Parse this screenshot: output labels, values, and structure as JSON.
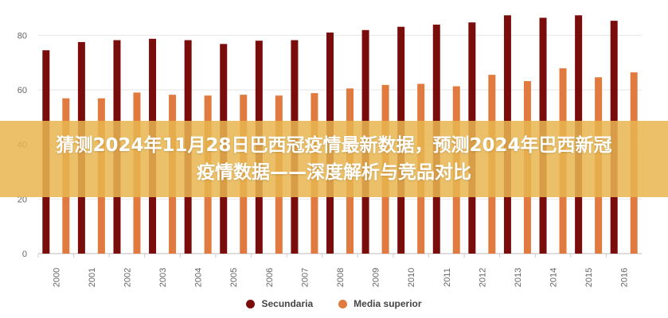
{
  "overlay": {
    "title": "猜测2024年11月28日巴西冠疫情最新数据，预测2024年巴西新冠疫情数据——深度解析与竞品对比"
  },
  "chart_data": {
    "type": "bar",
    "categories": [
      "2000",
      "2001",
      "2002",
      "2003",
      "2004",
      "2005",
      "2006",
      "2007",
      "2008",
      "2009",
      "2010",
      "2011",
      "2012",
      "2013",
      "2014",
      "2015",
      "2016"
    ],
    "series": [
      {
        "name": "Secundaria",
        "color": "#7a0c0c",
        "values": [
          74.5,
          77.5,
          78.2,
          78.7,
          78.2,
          76.8,
          78.0,
          78.2,
          81.0,
          81.9,
          83.1,
          83.9,
          84.7,
          87.3,
          86.4,
          87.3,
          85.3
        ]
      },
      {
        "name": "Media superior",
        "color": "#e07a3e",
        "values": [
          56.9,
          56.9,
          59.0,
          58.2,
          57.9,
          58.2,
          57.9,
          58.8,
          60.5,
          61.8,
          62.2,
          61.3,
          65.5,
          63.2,
          67.9,
          64.6,
          66.4
        ]
      }
    ],
    "ylim": [
      0,
      90
    ],
    "yticks": [
      "0",
      "20",
      "40",
      "60",
      "80"
    ],
    "grid": true,
    "legend_position": "bottom"
  }
}
